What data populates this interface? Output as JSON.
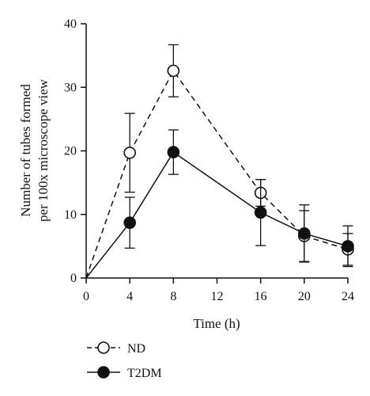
{
  "chart_data": {
    "type": "line",
    "xlabel": "Time (h)",
    "ylabel_lines": [
      "Number of tubes formed",
      "per 100x microscope view"
    ],
    "x_ticks": [
      "0",
      "4",
      "8",
      "12",
      "16",
      "20",
      "24"
    ],
    "y_ticks": [
      "0",
      "10",
      "20",
      "30",
      "40"
    ],
    "xlim": [
      0,
      24
    ],
    "ylim": [
      0,
      40
    ],
    "grid": false,
    "legend_position": "bottom-left",
    "series": [
      {
        "name": "ND",
        "marker": "open-circle",
        "line_style": "dashed",
        "color": "#111111",
        "x": [
          0,
          4,
          8,
          16,
          20,
          24
        ],
        "y": [
          0,
          19.7,
          32.6,
          13.4,
          6.6,
          4.5
        ],
        "err": [
          0,
          6.2,
          4.1,
          2.1,
          4.0,
          2.5
        ]
      },
      {
        "name": "T2DM",
        "marker": "filled-circle",
        "line_style": "solid",
        "color": "#111111",
        "x": [
          0,
          4,
          8,
          16,
          20,
          24
        ],
        "y": [
          0,
          8.7,
          19.8,
          10.3,
          7.0,
          5.0
        ],
        "err": [
          0,
          4.0,
          3.5,
          5.2,
          4.5,
          3.2
        ]
      }
    ]
  }
}
